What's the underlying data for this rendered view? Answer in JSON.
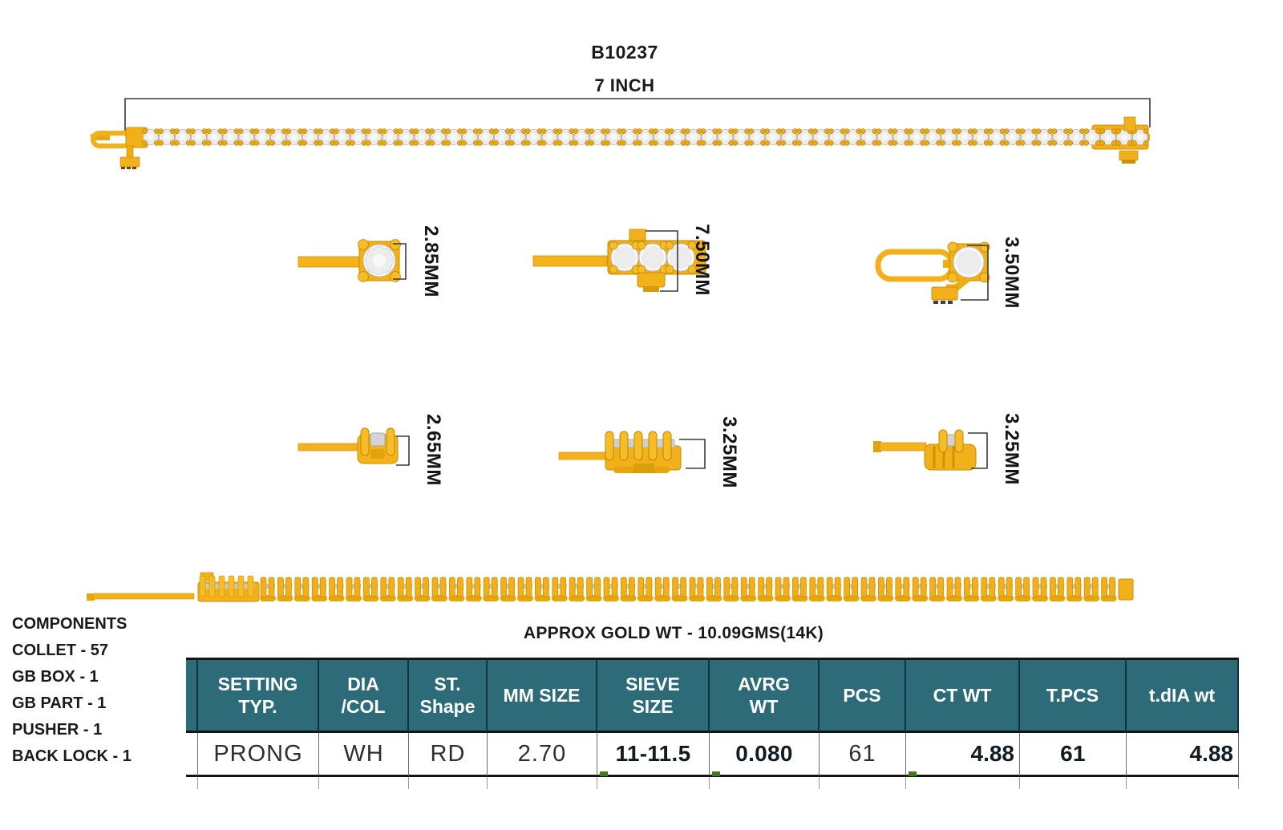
{
  "page": {
    "title": "B10237",
    "length_label": "7 INCH"
  },
  "details": [
    {
      "name": "collet-top-width",
      "label": "2.85MM"
    },
    {
      "name": "gb-box-top-width",
      "label": "7.50MM"
    },
    {
      "name": "clasp-top-width",
      "label": "3.50MM"
    },
    {
      "name": "collet-side-height",
      "label": "2.65MM"
    },
    {
      "name": "gb-box-side-height",
      "label": "3.25MM"
    },
    {
      "name": "clasp-side-height",
      "label": "3.25MM"
    }
  ],
  "components": {
    "heading": "COMPONENTS",
    "items": [
      "COLLET - 57",
      "GB BOX - 1",
      "GB PART - 1",
      "PUSHER - 1",
      "BACK LOCK - 1"
    ]
  },
  "gold_weight_label": "APPROX GOLD WT - 10.09GMS(14K)",
  "spec_table": {
    "headers": [
      {
        "lines": [
          "SETTING",
          "TYP."
        ]
      },
      {
        "lines": [
          "DIA",
          "/COL"
        ]
      },
      {
        "lines": [
          "ST.",
          "Shape"
        ]
      },
      {
        "lines": [
          "MM SIZE"
        ]
      },
      {
        "lines": [
          "SIEVE",
          "SIZE"
        ]
      },
      {
        "lines": [
          "AVRG",
          "WT"
        ]
      },
      {
        "lines": [
          "PCS"
        ]
      },
      {
        "lines": [
          "CT WT"
        ]
      },
      {
        "lines": [
          "T.PCS"
        ]
      },
      {
        "lines": [
          "t.dIA wt"
        ]
      }
    ],
    "row": {
      "setting_typ": "PRONG",
      "dia_col": "WH",
      "st_shape": "RD",
      "mm_size": "2.70",
      "sieve_size": "11-11.5",
      "avrg_wt": "0.080",
      "pcs": "61",
      "ct_wt": "4.88",
      "t_pcs": "61",
      "t_dia_wt": "4.88"
    }
  },
  "colors": {
    "header_bg": "#2E6B79",
    "gold": "#F2B01A",
    "gold_dark": "#C8920A",
    "gold_light": "#F7BD26",
    "stone_gray": "#D4D4D4",
    "green_mark": "#3F7A1E",
    "dim_line": "#3A3A3A"
  }
}
